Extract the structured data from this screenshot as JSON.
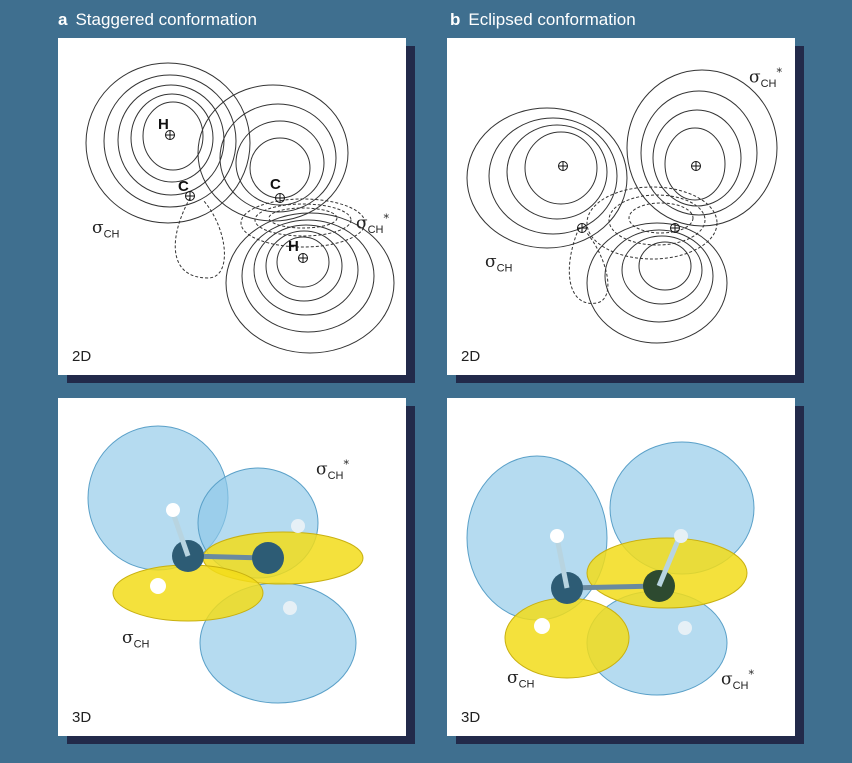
{
  "columns": {
    "a": {
      "letter": "a",
      "title": "Staggered conformation"
    },
    "b": {
      "letter": "b",
      "title": "Eclipsed conformation"
    }
  },
  "panels": {
    "a2d": {
      "label": "2D",
      "sigma": "σ",
      "sigma_sub": "CH",
      "sigma_star_sup": "*",
      "atoms": [
        "H",
        "C",
        "C",
        "H"
      ]
    },
    "b2d": {
      "label": "2D",
      "sigma": "σ",
      "sigma_sub": "CH",
      "sigma_star_sup": "*"
    },
    "a3d": {
      "label": "3D",
      "sigma": "σ",
      "sigma_sub": "CH",
      "sigma_star_sup": "*"
    },
    "b3d": {
      "label": "3D",
      "sigma": "σ",
      "sigma_sub": "CH",
      "sigma_star_sup": "*"
    }
  },
  "colors": {
    "background": "#3f6f8f",
    "shadow": "#222a4a",
    "lobe_blue": "#8ec8e8",
    "lobe_yellow": "#f2dc1a"
  }
}
